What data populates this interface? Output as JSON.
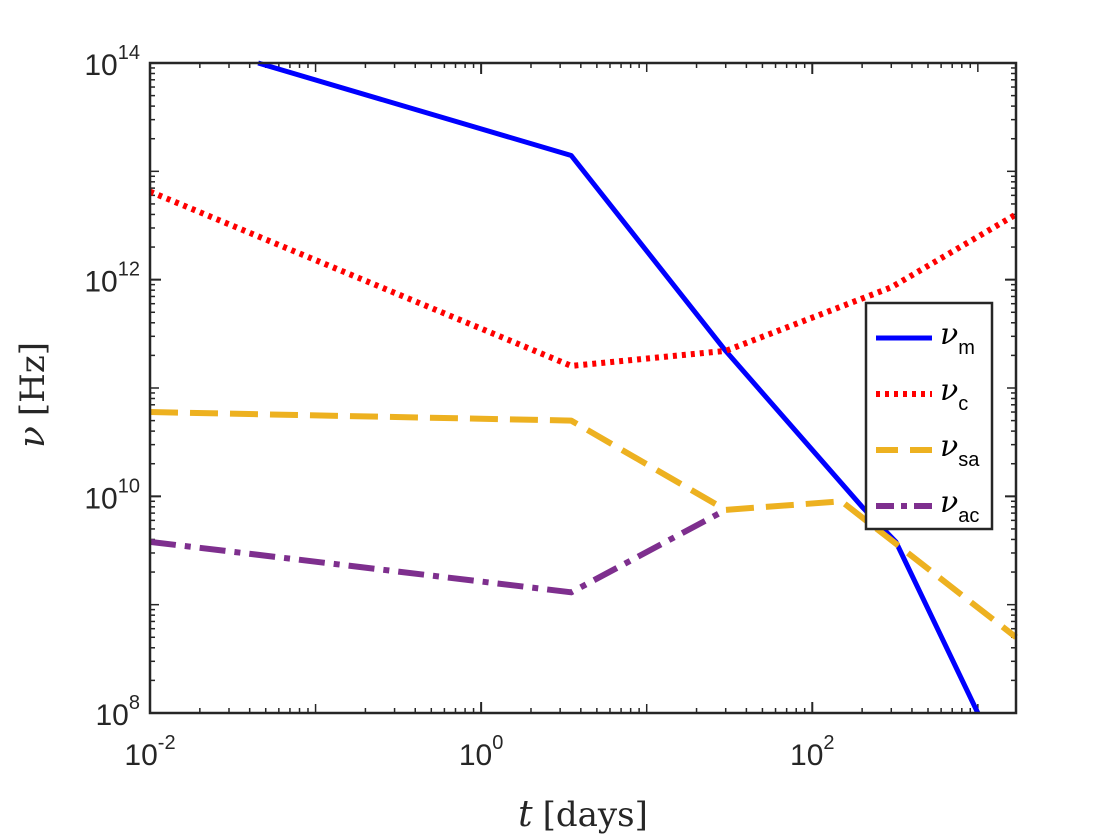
{
  "chart_data": {
    "type": "line",
    "xscale": "log",
    "yscale": "log",
    "xlim": [
      0.01,
      1700
    ],
    "ylim": [
      100000000.0,
      100000000000000.0
    ],
    "xticks": [
      {
        "value": 0.01,
        "base": "10",
        "exp": "-2"
      },
      {
        "value": 1,
        "base": "10",
        "exp": "0"
      },
      {
        "value": 100,
        "base": "10",
        "exp": "2"
      }
    ],
    "yticks": [
      {
        "value": 100000000.0,
        "base": "10",
        "exp": "8"
      },
      {
        "value": 10000000000.0,
        "base": "10",
        "exp": "10"
      },
      {
        "value": 1000000000000.0,
        "base": "10",
        "exp": "12"
      },
      {
        "value": 100000000000000.0,
        "base": "10",
        "exp": "14"
      }
    ],
    "xlabel": {
      "symbol": "t",
      "unit": "[days]"
    },
    "ylabel": {
      "symbol": "ν",
      "unit": "[Hz]"
    },
    "legend_position": "right",
    "series": [
      {
        "name": "ν",
        "sub": "m",
        "color": "#0000ff",
        "style": "solid",
        "points": [
          [
            0.045,
            100000000000000.0
          ],
          [
            3.5,
            14000000000000.0
          ],
          [
            30,
            220000000000.0
          ],
          [
            200,
            8000000000.0
          ],
          [
            320,
            3800000000.0
          ],
          [
            1000,
            100000000.0
          ]
        ]
      },
      {
        "name": "ν",
        "sub": "c",
        "color": "#ff0000",
        "style": "dotted",
        "points": [
          [
            0.01,
            6500000000000.0
          ],
          [
            3.5,
            160000000000.0
          ],
          [
            30,
            220000000000.0
          ],
          [
            300,
            850000000000.0
          ],
          [
            1700,
            4000000000000.0
          ]
        ]
      },
      {
        "name": "ν",
        "sub": "sa",
        "color": "#edb120",
        "style": "dashed",
        "points": [
          [
            0.01,
            60000000000.0
          ],
          [
            3.5,
            50000000000.0
          ],
          [
            30,
            7500000000.0
          ],
          [
            150,
            9000000000.0
          ],
          [
            1700,
            500000000.0
          ]
        ]
      },
      {
        "name": "ν",
        "sub": "ac",
        "color": "#7e2f8e",
        "style": "dashdot",
        "points": [
          [
            0.01,
            3800000000.0
          ],
          [
            3.5,
            1300000000.0
          ],
          [
            30,
            7500000000.0
          ]
        ]
      }
    ]
  }
}
